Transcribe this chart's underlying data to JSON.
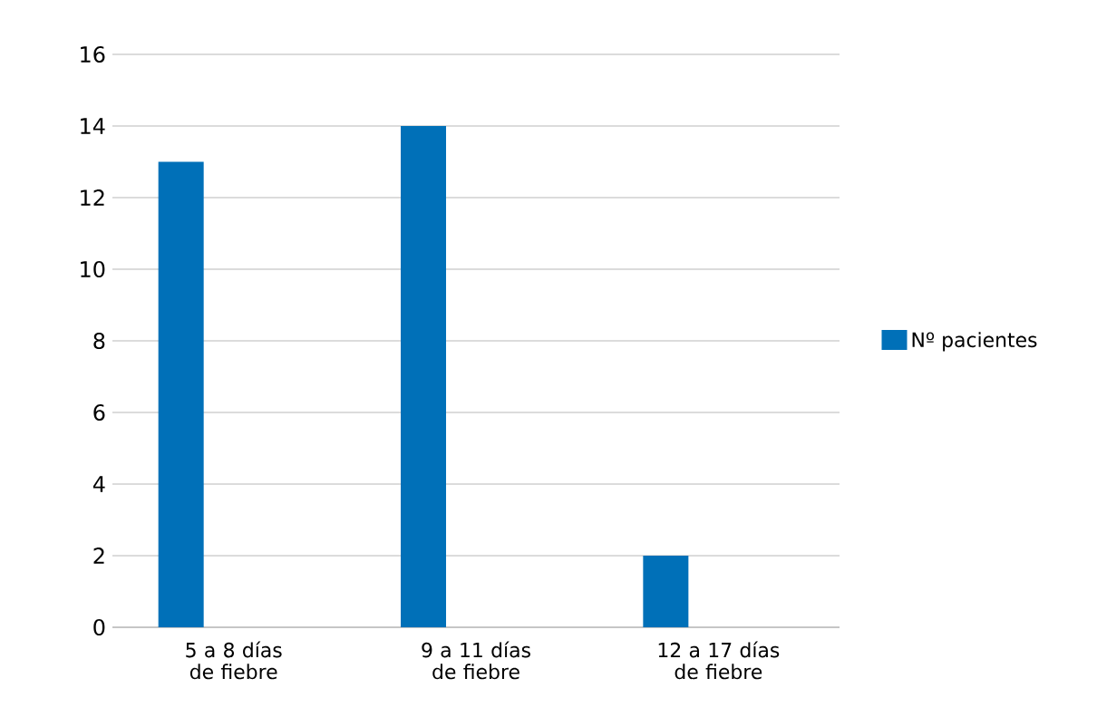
{
  "chart_data": {
    "type": "bar",
    "categories": [
      "5 a 8 días de fiebre",
      "9 a 11 días de fiebre",
      "12 a 17 días de fiebre"
    ],
    "series": [
      {
        "name": "Nº pacientes",
        "color": "#0070b8",
        "values": [
          13,
          14,
          2
        ]
      }
    ],
    "ylim": [
      0,
      16
    ],
    "yticks": [
      0,
      2,
      4,
      6,
      8,
      10,
      12,
      14,
      16
    ],
    "grid": "y",
    "legend": "right"
  }
}
